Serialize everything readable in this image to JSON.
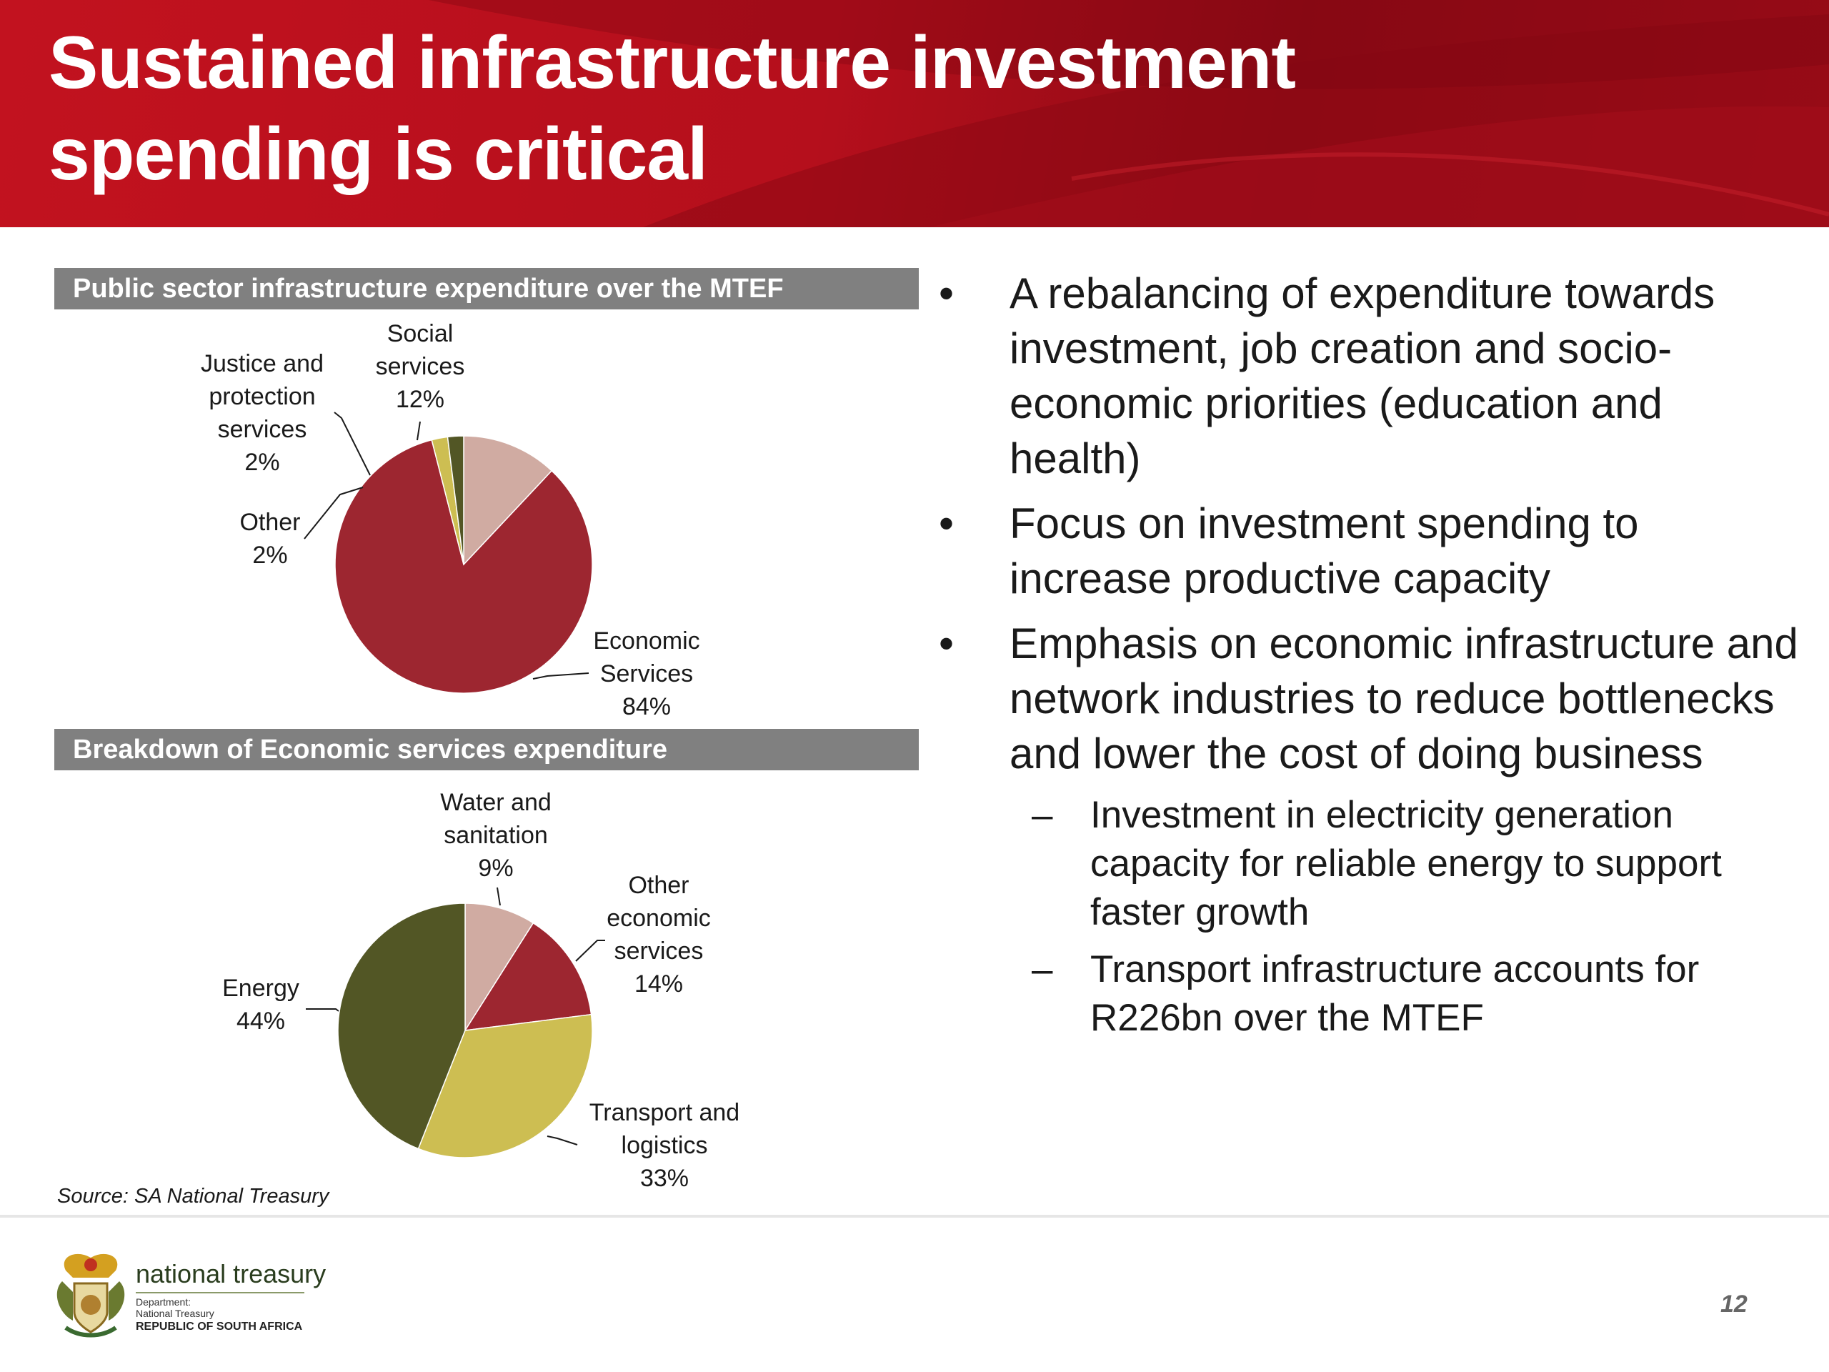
{
  "title": "Sustained infrastructure investment\nspending is critical",
  "colors": {
    "banner": "#b50f1c",
    "section_bar": "#808080",
    "economic_red": "#9d2630",
    "social_pink": "#d0aba2",
    "other_yellow": "#cdbe52",
    "justice_olive": "#525625",
    "energy_olive": "#525625"
  },
  "chart_data": [
    {
      "type": "pie",
      "title": "Public sector infrastructure expenditure over the MTEF",
      "slices": [
        {
          "name": "Social services",
          "value": 12,
          "label": "12%",
          "color": "#d0aba2"
        },
        {
          "name": "Economic Services",
          "value": 84,
          "label": "84%",
          "color": "#9d2630"
        },
        {
          "name": "Other",
          "value": 2,
          "label": "2%",
          "color": "#cdbe52"
        },
        {
          "name": "Justice and protection services",
          "value": 2,
          "label": "2%",
          "color": "#525625"
        }
      ]
    },
    {
      "type": "pie",
      "title": "Breakdown of Economic services expenditure",
      "slices": [
        {
          "name": "Water and sanitation",
          "value": 9,
          "label": "9%",
          "color": "#d0aba2"
        },
        {
          "name": "Other economic services",
          "value": 14,
          "label": "14%",
          "color": "#9d2630"
        },
        {
          "name": "Transport and logistics",
          "value": 33,
          "label": "33%",
          "color": "#cdbe52"
        },
        {
          "name": "Energy",
          "value": 44,
          "label": "44%",
          "color": "#525625"
        }
      ]
    }
  ],
  "labels": {
    "justice": "Justice and\nprotection\nservices\n2%",
    "social": "Social\nservices\n12%",
    "other": "Other\n2%",
    "economic": "Economic\nServices\n84%",
    "water": "Water and\nsanitation\n9%",
    "other_econ": "Other\neconomic\nservices\n14%",
    "energy": "Energy\n44%",
    "transport": "Transport and\nlogistics\n33%"
  },
  "source": "Source: SA National Treasury",
  "bullets": [
    {
      "text": "A rebalancing of expenditure towards investment, job creation and socio-economic priorities (education and health)"
    },
    {
      "text": "Focus on investment spending to increase productive capacity"
    },
    {
      "text": "Emphasis on economic infrastructure and network industries to reduce bottlenecks and lower the cost of doing business"
    }
  ],
  "sub_bullets": [
    {
      "text": "Investment in electricity generation capacity for reliable energy to support faster growth"
    },
    {
      "text": "Transport infrastructure accounts for R226bn over the MTEF"
    }
  ],
  "bullet_symbol": "•",
  "dash_symbol": "–",
  "footer": {
    "brand": "national treasury",
    "dept_line1": "Department:",
    "dept_line2": "National Treasury",
    "dept_line3": "REPUBLIC OF SOUTH AFRICA",
    "page_number": "12"
  }
}
